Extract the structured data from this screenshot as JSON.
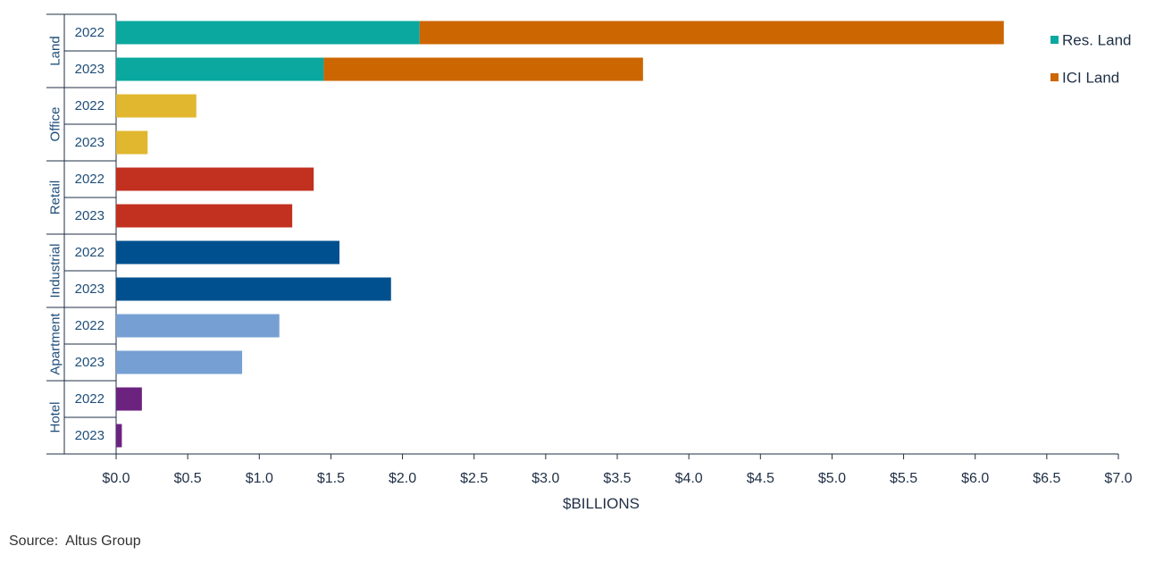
{
  "chart_data": {
    "type": "bar",
    "orientation": "horizontal",
    "stacked": true,
    "title": "",
    "xlabel": "$BILLIONS",
    "xlim": [
      0,
      7
    ],
    "x_ticks": [
      "$0.0",
      "$0.5",
      "$1.0",
      "$1.5",
      "$2.0",
      "$2.5",
      "$3.0",
      "$3.5",
      "$4.0",
      "$4.5",
      "$5.0",
      "$5.5",
      "$6.0",
      "$6.5",
      "$7.0"
    ],
    "tick_step": 0.5,
    "legend": {
      "placement": "top-right",
      "items": [
        {
          "name": "Res. Land",
          "color": "#0aa89e"
        },
        {
          "name": "ICI Land",
          "color": "#cc6600"
        }
      ]
    },
    "groups": [
      {
        "name": "Land",
        "rows": [
          {
            "year": "2022",
            "segments": [
              {
                "series": "Res. Land",
                "value": 2.12,
                "color": "#0aa89e"
              },
              {
                "series": "ICI Land",
                "value": 4.08,
                "color": "#cc6600"
              }
            ]
          },
          {
            "year": "2023",
            "segments": [
              {
                "series": "Res. Land",
                "value": 1.45,
                "color": "#0aa89e"
              },
              {
                "series": "ICI Land",
                "value": 2.23,
                "color": "#cc6600"
              }
            ]
          }
        ]
      },
      {
        "name": "Office",
        "rows": [
          {
            "year": "2022",
            "segments": [
              {
                "series": "Office",
                "value": 0.56,
                "color": "#e0b72e"
              }
            ]
          },
          {
            "year": "2023",
            "segments": [
              {
                "series": "Office",
                "value": 0.22,
                "color": "#e0b72e"
              }
            ]
          }
        ]
      },
      {
        "name": "Retail",
        "rows": [
          {
            "year": "2022",
            "segments": [
              {
                "series": "Retail",
                "value": 1.38,
                "color": "#c23020"
              }
            ]
          },
          {
            "year": "2023",
            "segments": [
              {
                "series": "Retail",
                "value": 1.23,
                "color": "#c23020"
              }
            ]
          }
        ]
      },
      {
        "name": "Industrial",
        "rows": [
          {
            "year": "2022",
            "segments": [
              {
                "series": "Industrial",
                "value": 1.56,
                "color": "#00508f"
              }
            ]
          },
          {
            "year": "2023",
            "segments": [
              {
                "series": "Industrial",
                "value": 1.92,
                "color": "#00508f"
              }
            ]
          }
        ]
      },
      {
        "name": "Apartment",
        "rows": [
          {
            "year": "2022",
            "segments": [
              {
                "series": "Apartment",
                "value": 1.14,
                "color": "#769fd3"
              }
            ]
          },
          {
            "year": "2023",
            "segments": [
              {
                "series": "Apartment",
                "value": 0.88,
                "color": "#769fd3"
              }
            ]
          }
        ]
      },
      {
        "name": "Hotel",
        "rows": [
          {
            "year": "2022",
            "segments": [
              {
                "series": "Hotel",
                "value": 0.18,
                "color": "#6c2380"
              }
            ]
          },
          {
            "year": "2023",
            "segments": [
              {
                "series": "Hotel",
                "value": 0.04,
                "color": "#6c2380"
              }
            ]
          }
        ]
      }
    ]
  },
  "source": "Source:  Altus Group"
}
